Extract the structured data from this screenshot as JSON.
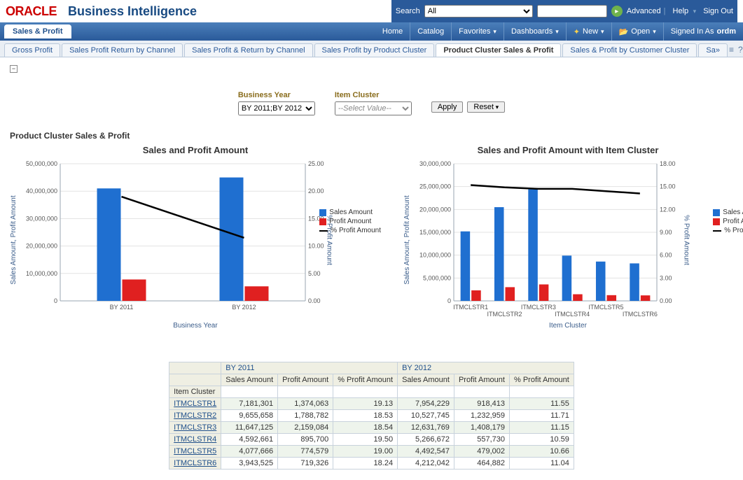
{
  "header": {
    "logo": "ORACLE",
    "app_title": "Business Intelligence",
    "search_label": "Search",
    "search_scope_selected": "All",
    "search_value": "",
    "links": {
      "advanced": "Advanced",
      "help": "Help",
      "signout": "Sign Out"
    }
  },
  "nav": {
    "active_tab": "Sales & Profit",
    "links": {
      "home": "Home",
      "catalog": "Catalog",
      "favorites": "Favorites",
      "dashboards": "Dashboards",
      "new": "New",
      "open": "Open"
    },
    "signed_in_prefix": "Signed In As ",
    "signed_in_user": "ordm"
  },
  "sub_tabs": [
    "Gross Profit",
    "Sales Profit Return by Channel",
    "Sales Profit & Return by Channel",
    "Sales Profit by Product Cluster",
    "Product Cluster Sales & Profit",
    "Sales & Profit by Customer Cluster",
    "Sa»"
  ],
  "active_sub_tab_index": 4,
  "prompts": {
    "business_year_label": "Business Year",
    "business_year_value": "BY 2011;BY 2012",
    "item_cluster_label": "Item Cluster",
    "item_cluster_placeholder": "--Select Value--",
    "apply": "Apply",
    "reset": "Reset"
  },
  "section_title": "Product Cluster Sales & Profit",
  "colors": {
    "sales": "#1f6fd0",
    "profit": "#e02020",
    "line": "#000000",
    "grid": "#e3e3e3",
    "axis": "#9aa6b2",
    "axis_text": "#3a5c8a"
  },
  "chart1": {
    "title": "Sales and Profit Amount",
    "x_label": "Business Year",
    "y_left_label": "Sales Amount, Profit Amount",
    "y_right_label": "% Profit Amount",
    "y_left_max": 50000000,
    "y_left_step": 10000000,
    "y_right_max": 25,
    "y_right_step": 5,
    "categories": [
      "BY 2011",
      "BY 2012"
    ],
    "sales": [
      41000000,
      45000000
    ],
    "profit": [
      7800000,
      5300000
    ],
    "pct": [
      19.0,
      11.5
    ],
    "legend": {
      "sales": "Sales Amount",
      "profit": "Profit Amount",
      "pct": "% Profit Amount"
    }
  },
  "chart2": {
    "title": "Sales and Profit Amount with Item Cluster",
    "x_label": "Item Cluster",
    "y_left_label": "Sales Amount, Profit Amount",
    "y_right_label": "% Profit Amount",
    "y_left_max": 30000000,
    "y_left_step": 5000000,
    "y_right_max": 18,
    "y_right_step": 3,
    "categories": [
      "ITMCLSTR1",
      "ITMCLSTR2",
      "ITMCLSTR3",
      "ITMCLSTR4",
      "ITMCLSTR5",
      "ITMCLSTR6"
    ],
    "sales": [
      15200000,
      20500000,
      24400000,
      9900000,
      8600000,
      8200000
    ],
    "profit": [
      2300000,
      3000000,
      3600000,
      1450000,
      1250000,
      1200000
    ],
    "pct": [
      15.2,
      14.9,
      14.7,
      14.7,
      14.4,
      14.1
    ],
    "legend": {
      "sales": "Sales Amount",
      "profit": "Profit Amount",
      "pct": "% Profit Amount"
    }
  },
  "table": {
    "row_header": "Item Cluster",
    "years": [
      "BY 2011",
      "BY 2012"
    ],
    "cols": [
      "Sales Amount",
      "Profit Amount",
      "% Profit Amount"
    ],
    "rows": [
      {
        "cluster": "ITMCLSTR1",
        "v": [
          "7,181,301",
          "1,374,063",
          "19.13",
          "7,954,229",
          "918,413",
          "11.55"
        ]
      },
      {
        "cluster": "ITMCLSTR2",
        "v": [
          "9,655,658",
          "1,788,782",
          "18.53",
          "10,527,745",
          "1,232,959",
          "11.71"
        ]
      },
      {
        "cluster": "ITMCLSTR3",
        "v": [
          "11,647,125",
          "2,159,084",
          "18.54",
          "12,631,769",
          "1,408,179",
          "11.15"
        ]
      },
      {
        "cluster": "ITMCLSTR4",
        "v": [
          "4,592,661",
          "895,700",
          "19.50",
          "5,266,672",
          "557,730",
          "10.59"
        ]
      },
      {
        "cluster": "ITMCLSTR5",
        "v": [
          "4,077,666",
          "774,579",
          "19.00",
          "4,492,547",
          "479,002",
          "10.66"
        ]
      },
      {
        "cluster": "ITMCLSTR6",
        "v": [
          "3,943,525",
          "719,326",
          "18.24",
          "4,212,042",
          "464,882",
          "11.04"
        ]
      }
    ]
  }
}
